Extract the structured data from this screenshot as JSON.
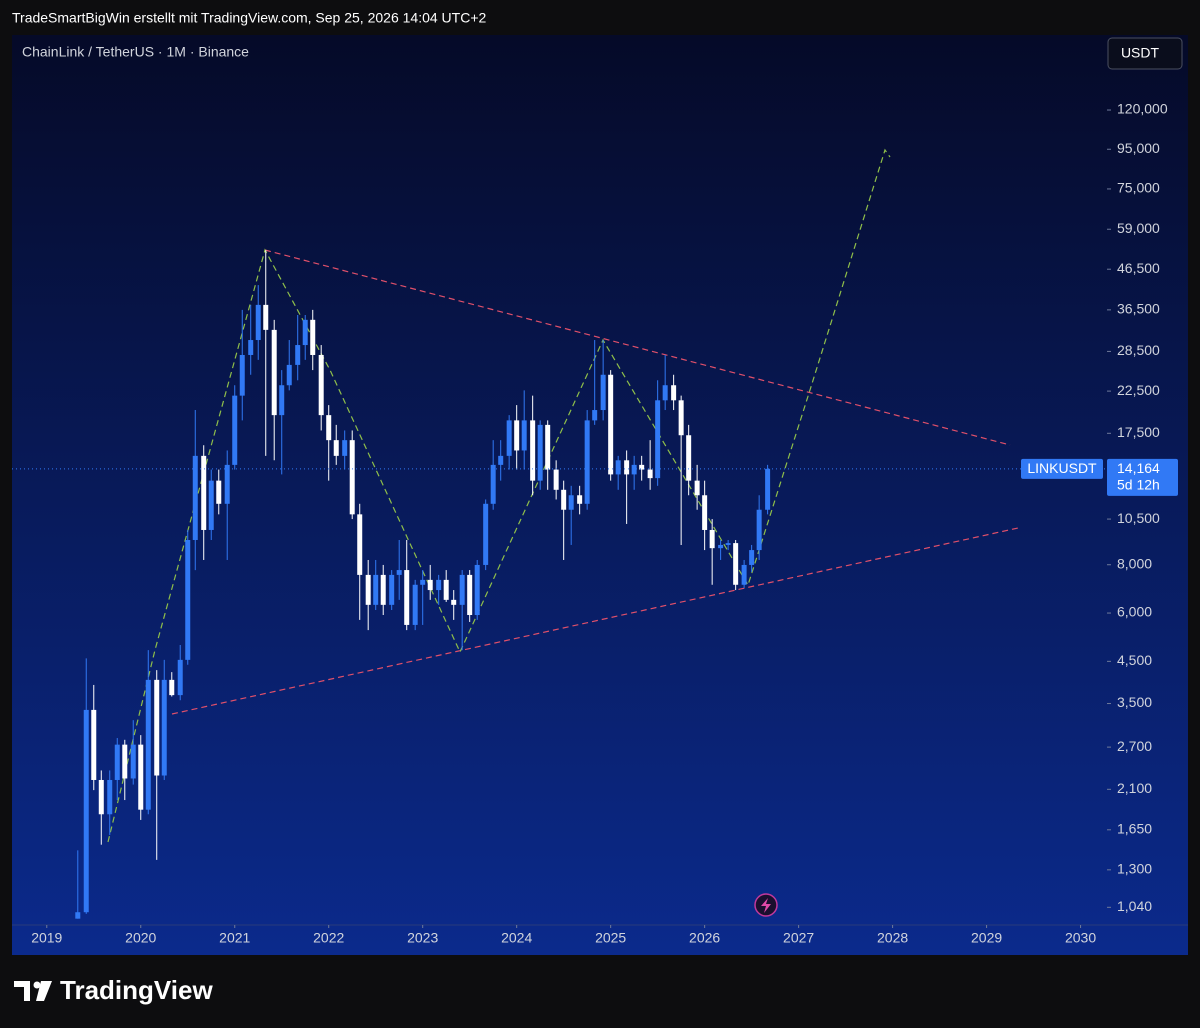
{
  "header": {
    "attribution": "TradeSmartBigWin erstellt mit TradingView.com, Sep 25, 2026 14:04 UTC+2"
  },
  "chart_data": {
    "type": "candlestick",
    "title": "ChainLink / TetherUS · 1M · Binance",
    "currency": "USDT",
    "symbol": "LINKUSDT",
    "last_price_label": "14,164",
    "countdown": "5d 12h",
    "log_scale": true,
    "up_color": "#3179f5",
    "down_color": "#ffffff",
    "x": [
      2019.33,
      2019.42,
      2019.5,
      2019.58,
      2019.67,
      2019.75,
      2019.83,
      2019.92,
      2020,
      2020.08,
      2020.17,
      2020.25,
      2020.33,
      2020.42,
      2020.5,
      2020.58,
      2020.67,
      2020.75,
      2020.83,
      2020.92,
      2021,
      2021.08,
      2021.17,
      2021.25,
      2021.33,
      2021.42,
      2021.5,
      2021.58,
      2021.67,
      2021.75,
      2021.83,
      2021.92,
      2022,
      2022.08,
      2022.17,
      2022.25,
      2022.33,
      2022.42,
      2022.5,
      2022.58,
      2022.67,
      2022.75,
      2022.83,
      2022.92,
      2023,
      2023.08,
      2023.17,
      2023.25,
      2023.33,
      2023.42,
      2023.5,
      2023.58,
      2023.67,
      2023.75,
      2023.83,
      2023.92,
      2024,
      2024.08,
      2024.17,
      2024.25,
      2024.33,
      2024.42,
      2024.5,
      2024.58,
      2024.67,
      2024.75,
      2024.83,
      2024.92,
      2025,
      2025.08,
      2025.17,
      2025.25,
      2025.33,
      2025.42,
      2025.5,
      2025.58,
      2025.67,
      2025.75,
      2025.83,
      2025.92,
      2026,
      2026.08,
      2026.17,
      2026.25,
      2026.33,
      2026.42,
      2026.5,
      2026.58,
      2026.67
    ],
    "open": [
      972,
      1010,
      3370,
      2220,
      1810,
      2220,
      2740,
      2240,
      2740,
      1860,
      4030,
      2280,
      4030,
      3680,
      4540,
      9270,
      15300,
      9840,
      13200,
      11500,
      14500,
      21900,
      27900,
      30500,
      37600,
      32400,
      19500,
      23300,
      26300,
      29600,
      34400,
      27900,
      19500,
      16800,
      15300,
      16800,
      10800,
      7530,
      6300,
      7530,
      6300,
      7530,
      7750,
      5590,
      7100,
      7310,
      6880,
      7310,
      6490,
      6300,
      7530,
      5930,
      7990,
      11500,
      14500,
      15300,
      18900,
      15800,
      18900,
      13200,
      18400,
      14100,
      12500,
      11100,
      12100,
      11500,
      18900,
      20100,
      24800,
      13700,
      14900,
      13700,
      14500,
      14100,
      13400,
      21300,
      23300,
      21300,
      17300,
      13200,
      12100,
      9840,
      8830,
      9000,
      9100,
      7100,
      7990,
      8730,
      11100
    ],
    "high": [
      1460,
      4580,
      3910,
      2350,
      2350,
      2850,
      2820,
      3170,
      2900,
      4810,
      4270,
      4540,
      4220,
      4960,
      9840,
      20100,
      16300,
      14100,
      14100,
      15800,
      23300,
      36500,
      37600,
      42300,
      52100,
      34400,
      25500,
      30500,
      35400,
      35400,
      36500,
      29600,
      20700,
      18400,
      17800,
      17800,
      11500,
      8230,
      8230,
      7990,
      7750,
      9270,
      9270,
      7310,
      7750,
      7990,
      7530,
      7750,
      6880,
      7750,
      7750,
      8230,
      11800,
      16800,
      16800,
      19500,
      20700,
      22600,
      21900,
      18900,
      18900,
      14900,
      13200,
      12800,
      12800,
      20100,
      30500,
      30500,
      25500,
      15300,
      15800,
      15300,
      15300,
      16800,
      24000,
      27900,
      24800,
      21900,
      18400,
      14500,
      13200,
      10500,
      9270,
      9270,
      9270,
      8230,
      9000,
      12100,
      14500
    ],
    "low": [
      972,
      1000,
      2090,
      1510,
      1600,
      1970,
      1970,
      2160,
      1750,
      1810,
      1380,
      2220,
      3650,
      3570,
      4410,
      7750,
      8230,
      9270,
      10800,
      8230,
      14100,
      18900,
      24800,
      27100,
      15300,
      14900,
      13700,
      22600,
      24000,
      27100,
      25500,
      17800,
      13200,
      14500,
      14100,
      10500,
      5760,
      5420,
      6110,
      5930,
      6110,
      6490,
      5420,
      5420,
      5590,
      6490,
      6300,
      6410,
      5760,
      4810,
      5690,
      5760,
      7750,
      11100,
      13200,
      14100,
      14100,
      14100,
      12100,
      12500,
      12500,
      11800,
      8230,
      9000,
      10800,
      11100,
      18400,
      18900,
      13200,
      12500,
      10200,
      12500,
      13200,
      12500,
      12800,
      20100,
      20100,
      9000,
      12100,
      11100,
      8730,
      7100,
      8230,
      8730,
      6880,
      6970,
      7660,
      8230,
      10800
    ],
    "close": [
      1010,
      3370,
      2220,
      1810,
      2220,
      2740,
      2240,
      2740,
      1860,
      4030,
      2280,
      4030,
      3680,
      4540,
      9270,
      15300,
      9840,
      13200,
      11500,
      14500,
      21900,
      27900,
      30500,
      37600,
      32400,
      19500,
      23300,
      26300,
      29600,
      34400,
      27900,
      19500,
      16800,
      15300,
      16800,
      10800,
      7530,
      6300,
      7530,
      6300,
      7530,
      7750,
      5590,
      7100,
      7310,
      6880,
      7310,
      6490,
      6300,
      7530,
      5930,
      7990,
      11500,
      14500,
      15300,
      18900,
      15800,
      18900,
      13200,
      18400,
      14100,
      12500,
      11100,
      12100,
      11500,
      18900,
      20100,
      24800,
      13700,
      14900,
      13700,
      14500,
      14100,
      13400,
      21300,
      23300,
      21300,
      17300,
      13200,
      12100,
      9840,
      8830,
      9000,
      9100,
      7100,
      7990,
      8730,
      11100,
      14164
    ],
    "xlim": [
      2018.63,
      2030.26
    ],
    "xticks": [
      2019,
      2020,
      2021,
      2022,
      2023,
      2024,
      2025,
      2026,
      2027,
      2028,
      2029,
      2030
    ],
    "ylim": [
      936,
      187600
    ],
    "yticks": [
      {
        "value": 120000,
        "label": "120,000"
      },
      {
        "value": 95000,
        "label": "95,000"
      },
      {
        "value": 75000,
        "label": "75,000"
      },
      {
        "value": 59000,
        "label": "59,000"
      },
      {
        "value": 46500,
        "label": "46,500"
      },
      {
        "value": 36500,
        "label": "36,500"
      },
      {
        "value": 28500,
        "label": "28,500"
      },
      {
        "value": 22500,
        "label": "22,500"
      },
      {
        "value": 17500,
        "label": "17,500"
      },
      {
        "value": 10500,
        "label": "10,500"
      },
      {
        "value": 8000,
        "label": "8,000"
      },
      {
        "value": 6000,
        "label": "6,000"
      },
      {
        "value": 4500,
        "label": "4,500"
      },
      {
        "value": 3500,
        "label": "3,500"
      },
      {
        "value": 2700,
        "label": "2,700"
      },
      {
        "value": 2100,
        "label": "2,100"
      },
      {
        "value": 1650,
        "label": "1,650"
      },
      {
        "value": 1300,
        "label": "1,300"
      },
      {
        "value": 1040,
        "label": "1,040"
      }
    ]
  },
  "footer": {
    "brand": "TradingView"
  }
}
